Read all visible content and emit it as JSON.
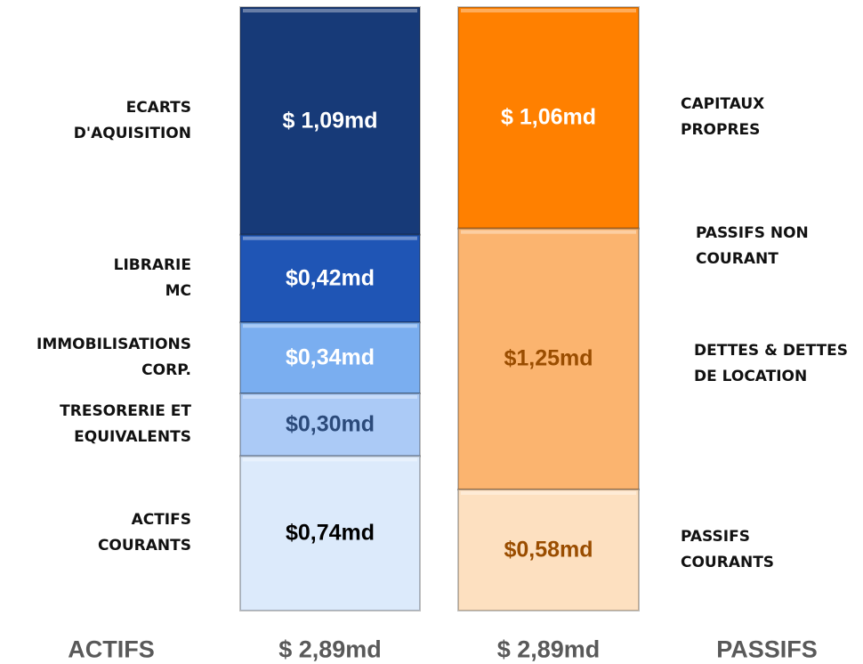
{
  "chart_data": {
    "type": "stacked_column",
    "columns": [
      {
        "name": "ACTIFS",
        "total": 2.89,
        "total_label": "$ 2,89md",
        "segments": [
          {
            "name": "ECARTS\nD'AQUISITION",
            "value": 1.09,
            "value_label": "$ 1,09md",
            "color": "#173a78",
            "text_color": "#ffffff"
          },
          {
            "name": "LIBRARIE\nMC",
            "value": 0.42,
            "value_label": "$0,42md",
            "color": "#1f55b5",
            "text_color": "#ffffff"
          },
          {
            "name": "IMMOBILISATIONS\nCORP.",
            "value": 0.34,
            "value_label": "$0,34md",
            "color": "#7aaef0",
            "text_color": "#ffffff"
          },
          {
            "name": "TRESORERIE ET\nEQUIVALENTS",
            "value": 0.3,
            "value_label": "$0,30md",
            "color": "#abcaf6",
            "text_color": "#2b4a7a"
          },
          {
            "name": "ACTIFS\nCOURANTS",
            "value": 0.74,
            "value_label": "$0,74md",
            "color": "#dceafb",
            "text_color": "#000000"
          }
        ]
      },
      {
        "name": "PASSIFS",
        "total": 2.89,
        "total_label": "$ 2,89md",
        "segments": [
          {
            "name": "CAPITAUX\nPROPRES",
            "value": 1.06,
            "value_label": "$ 1,06md",
            "color": "#ff8000",
            "text_color": "#ffffff"
          },
          {
            "name": "PASSIFS NON\nCOURANT",
            "sublabel": "DETTES & DETTES\nDE LOCATION",
            "value": 1.25,
            "value_label": "$1,25md",
            "color": "#fbb46f",
            "text_color": "#9a4d00"
          },
          {
            "name": "PASSIFS\nCOURANTS",
            "value": 0.58,
            "value_label": "$0,58md",
            "color": "#fde0c0",
            "text_color": "#9a4d00"
          }
        ]
      }
    ]
  }
}
